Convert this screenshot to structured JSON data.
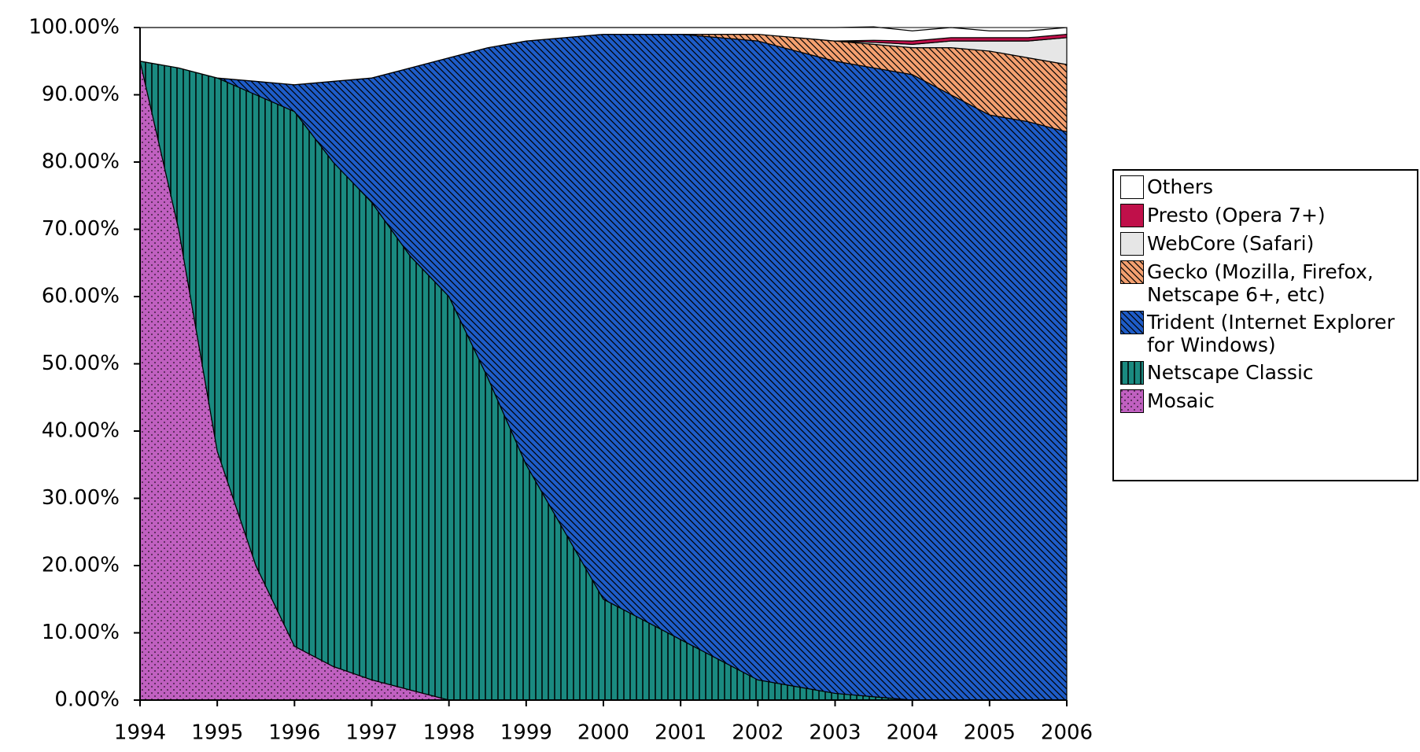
{
  "chart_data": {
    "type": "stacked_area",
    "x": [
      1994,
      1994.5,
      1995,
      1995.5,
      1996,
      1996.5,
      1997,
      1997.5,
      1998,
      1998.5,
      1999,
      1999.5,
      2000,
      2000.5,
      2001,
      2001.5,
      2002,
      2002.5,
      2003,
      2003.5,
      2004,
      2004.5,
      2005,
      2005.5,
      2006
    ],
    "series": [
      {
        "name": "Mosaic",
        "color": "#c060c0",
        "values": [
          95,
          70,
          37,
          20,
          8,
          5,
          3,
          1.5,
          0,
          0,
          0,
          0,
          0,
          0,
          0,
          0,
          0,
          0,
          0,
          0,
          0,
          0,
          0,
          0,
          0
        ]
      },
      {
        "name": "Netscape Classic",
        "color": "#1a8a80",
        "values": [
          0,
          24,
          55.5,
          70,
          79.5,
          75,
          71,
          64.5,
          60,
          48,
          35,
          25,
          15,
          12,
          9,
          6,
          3,
          2,
          1,
          0.5,
          0,
          0,
          0,
          0,
          0
        ]
      },
      {
        "name": "Trident (Internet Explorer for Windows)",
        "color": "#1e5cc8",
        "values": [
          0,
          0,
          0,
          2,
          4,
          12,
          18.5,
          28,
          35.5,
          49,
          63,
          73.5,
          84,
          87,
          90,
          92.5,
          95,
          94.5,
          94,
          93.5,
          93,
          90,
          87,
          86,
          84.5
        ]
      },
      {
        "name": "Gecko (Mozilla, Firefox, Netscape 6+, etc)",
        "color": "#f4a070",
        "values": [
          0,
          0,
          0,
          0,
          0,
          0,
          0,
          0,
          0,
          0,
          0,
          0,
          0,
          0,
          0,
          0.5,
          1,
          2,
          3,
          3.5,
          4,
          7,
          9.5,
          9.5,
          10
        ]
      },
      {
        "name": "WebCore (Safari)",
        "color": "#e6e6e6",
        "values": [
          0,
          0,
          0,
          0,
          0,
          0,
          0,
          0,
          0,
          0,
          0,
          0,
          0,
          0,
          0,
          0,
          0,
          0,
          0,
          0.3,
          0.5,
          1,
          1.5,
          2.5,
          4
        ]
      },
      {
        "name": "Presto (Opera 7+)",
        "color": "#c0104a",
        "values": [
          0,
          0,
          0,
          0,
          0,
          0,
          0,
          0,
          0,
          0,
          0,
          0,
          0,
          0,
          0,
          0,
          0,
          0,
          0,
          0.3,
          0.5,
          0.5,
          0.5,
          0.5,
          0.5
        ]
      },
      {
        "name": "Others",
        "color": "#ffffff",
        "values": [
          5,
          6,
          7.5,
          8,
          8.5,
          8,
          7.5,
          6,
          4.5,
          3,
          2,
          1.5,
          1,
          1,
          1,
          1,
          1,
          1.5,
          2,
          2,
          1.5,
          1.5,
          1,
          1,
          1
        ]
      }
    ],
    "xlim": [
      1994,
      2006
    ],
    "xticks": [
      1994,
      1995,
      1996,
      1997,
      1998,
      1999,
      2000,
      2001,
      2002,
      2003,
      2004,
      2005,
      2006
    ],
    "ylim": [
      0,
      100
    ],
    "yticks": [
      {
        "value": 0,
        "label": "0.00%"
      },
      {
        "value": 10,
        "label": "10.00%"
      },
      {
        "value": 20,
        "label": "20.00%"
      },
      {
        "value": 30,
        "label": "30.00%"
      },
      {
        "value": 40,
        "label": "40.00%"
      },
      {
        "value": 50,
        "label": "50.00%"
      },
      {
        "value": 60,
        "label": "60.00%"
      },
      {
        "value": 70,
        "label": "70.00%"
      },
      {
        "value": 80,
        "label": "80.00%"
      },
      {
        "value": 90,
        "label": "90.00%"
      },
      {
        "value": 100,
        "label": "100.00%"
      }
    ],
    "legend": "right"
  }
}
